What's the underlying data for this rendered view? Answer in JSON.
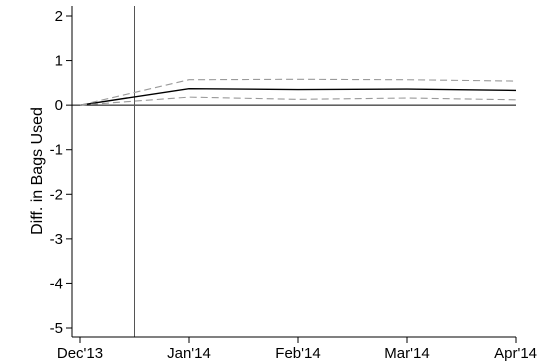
{
  "chart_data": {
    "type": "line",
    "title": "",
    "xlabel": "",
    "ylabel": "Diff. in Bags Used",
    "x": [
      "Dec'13",
      "Jan'14",
      "Feb'14",
      "Mar'14",
      "Apr'14"
    ],
    "xlim_index": [
      0,
      4
    ],
    "ylim": [
      -5,
      2
    ],
    "yticks": [
      "-5",
      "-4",
      "-3",
      "-2",
      "-1",
      "0",
      "1",
      "2"
    ],
    "grid": false,
    "legend": "none",
    "reference_lines": {
      "horizontal_y": 0,
      "vertical_x_index": 0.5
    },
    "series": [
      {
        "style": "solid",
        "color": "#000000",
        "values": [
          0,
          0.37,
          0.35,
          0.36,
          0.33
        ]
      },
      {
        "style": "dashed",
        "color": "#9a9a9a",
        "values": [
          0,
          0.57,
          0.58,
          0.57,
          0.54
        ]
      },
      {
        "style": "dashed",
        "color": "#9a9a9a",
        "values": [
          0,
          0.18,
          0.13,
          0.16,
          0.12
        ]
      }
    ]
  }
}
